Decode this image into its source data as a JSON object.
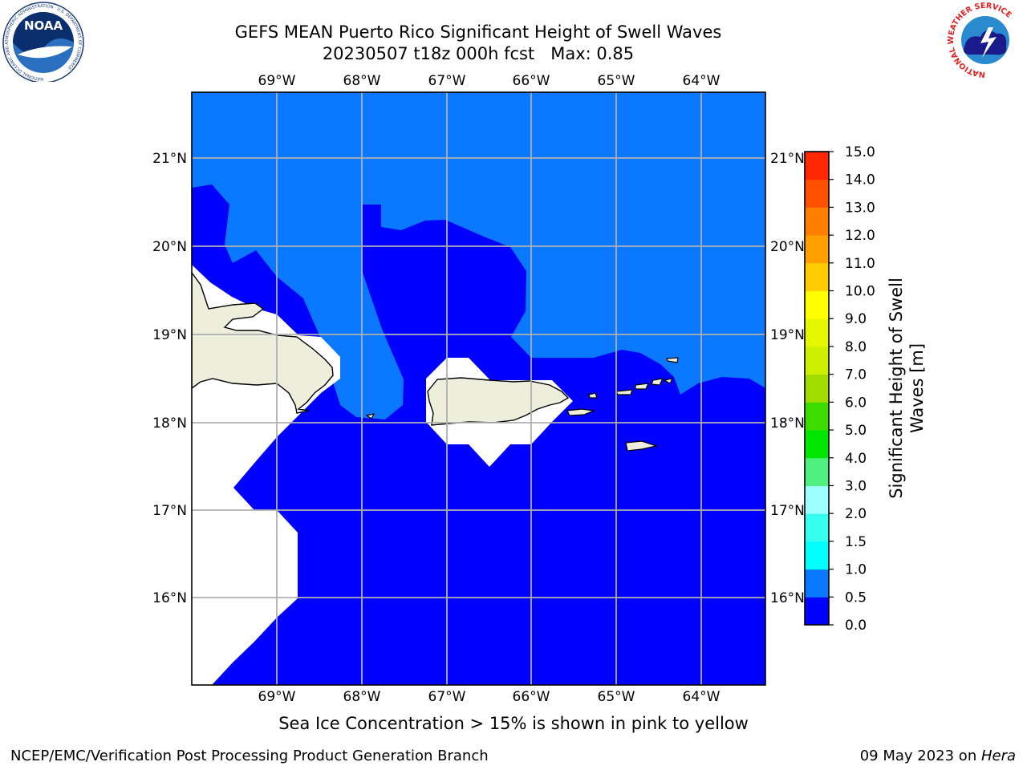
{
  "title": {
    "line1": "GEFS MEAN Puerto Rico Significant Height of Swell Waves",
    "line2": "20230507 t18z 000h fcst   Max: 0.85"
  },
  "map": {
    "lon_labels": [
      "69°W",
      "68°W",
      "67°W",
      "66°W",
      "65°W",
      "64°W"
    ],
    "lat_labels": [
      "21°N",
      "20°N",
      "19°N",
      "18°N",
      "17°N",
      "16°N"
    ],
    "colors": {
      "swell_0_0_5": "#0000ff",
      "swell_0_5_1_0": "#0a78ff",
      "land": "#eeeedd",
      "no_data": "#ffffff",
      "grid": "#b0b0b0"
    }
  },
  "colorbar": {
    "label_line1": "Significant Height of Swell",
    "label_line2": "Waves [m]",
    "ticks": [
      "0.0",
      "0.5",
      "1.0",
      "1.5",
      "2.0",
      "3.0",
      "4.0",
      "5.0",
      "6.0",
      "7.0",
      "8.0",
      "9.0",
      "10.0",
      "11.0",
      "12.0",
      "13.0",
      "14.0",
      "15.0"
    ],
    "colors": [
      "#0000ff",
      "#0a78ff",
      "#00ffff",
      "#36ffef",
      "#9effff",
      "#50f080",
      "#00e600",
      "#3cdc00",
      "#a0dc00",
      "#ccf000",
      "#e6f500",
      "#ffff00",
      "#ffcc00",
      "#ffa000",
      "#ff8000",
      "#ff5000",
      "#ff2800"
    ]
  },
  "note": "Sea Ice Concentration > 15% is shown in pink to yellow",
  "footer": {
    "left": "NCEP/EMC/Verification Post Processing Product Generation Branch",
    "date": "09 May 2023 on ",
    "machine": "Hera"
  },
  "logos": {
    "noaa_text": "NOAA",
    "noaa_ring": "NATIONAL OCEANIC AND ATMOSPHERIC ADMINISTRATION · U.S. DEPARTMENT OF COMMERCE ·",
    "nws_ring": "NATIONAL WEATHER SERVICE"
  }
}
